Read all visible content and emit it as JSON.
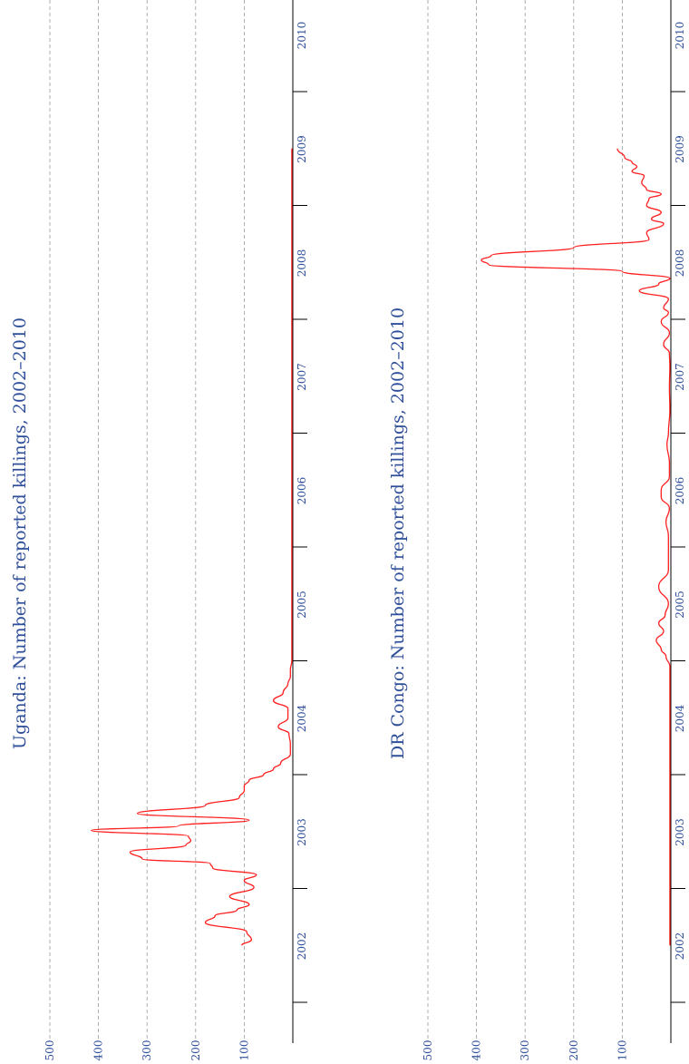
{
  "page": {
    "background": "#ffffff",
    "title_color": "#2f4f9a",
    "tick_color": "#2f4f9a",
    "line_color": "#ff2020",
    "axis_color": "#000000",
    "grid_color": "#999999"
  },
  "chart_data": [
    {
      "type": "line",
      "title": "Uganda: Number of reported killings, 2002–2010",
      "xlabel": "",
      "ylabel": "",
      "y_ticks": [
        "100",
        "200",
        "300",
        "400",
        "500"
      ],
      "x_ticks": [
        "2002",
        "2003",
        "2004",
        "2005",
        "2006",
        "2007",
        "2008",
        "2009",
        "2010"
      ],
      "xlim": [
        2002.0,
        2010.8
      ],
      "ylim": [
        0,
        510
      ],
      "grid": true,
      "series": [
        {
          "x": [
            2002.5,
            2002.55,
            2002.62,
            2002.7,
            2002.76,
            2002.81,
            2002.86,
            2002.93,
            2003.01,
            2003.07,
            2003.12,
            2003.18,
            2003.22,
            2003.26,
            2003.32,
            2003.38,
            2003.42,
            2003.46,
            2003.51,
            2003.55,
            2003.6,
            2003.66,
            2003.73,
            2003.8,
            2003.86,
            2003.9,
            2003.95,
            2004.0,
            2004.05,
            2004.1,
            2004.18,
            2004.27,
            2004.36,
            2004.42,
            2004.5,
            2004.58,
            2004.65,
            2004.72,
            2004.8,
            2004.86,
            2004.92,
            2005.0,
            2005.5,
            2006.0,
            2007.0,
            2008.0,
            2009.0,
            2009.5
          ],
          "y": [
            105,
            85,
            95,
            180,
            160,
            115,
            90,
            130,
            80,
            100,
            75,
            165,
            170,
            310,
            335,
            220,
            210,
            215,
            415,
            235,
            90,
            320,
            180,
            110,
            100,
            100,
            90,
            60,
            40,
            25,
            5,
            5,
            8,
            30,
            10,
            10,
            40,
            20,
            10,
            5,
            5,
            2,
            2,
            2,
            2,
            2,
            2,
            2
          ]
        }
      ]
    },
    {
      "type": "line",
      "title": "DR Congo: Number of reported killings, 2002–2010",
      "xlabel": "",
      "ylabel": "",
      "y_ticks": [
        "100",
        "200",
        "300",
        "400",
        "500"
      ],
      "x_ticks": [
        "2002",
        "2003",
        "2004",
        "2005",
        "2006",
        "2007",
        "2008",
        "2009",
        "2010"
      ],
      "xlim": [
        2002.0,
        2010.8
      ],
      "ylim": [
        0,
        510
      ],
      "grid": true,
      "series": [
        {
          "x": [
            2002.5,
            2003.0,
            2004.0,
            2004.95,
            2005.04,
            2005.1,
            2005.18,
            2005.26,
            2005.33,
            2005.4,
            2005.5,
            2005.65,
            2005.8,
            2006.0,
            2006.1,
            2006.22,
            2006.34,
            2006.44,
            2006.5,
            2006.62,
            2006.74,
            2006.9,
            2007.0,
            2007.2,
            2007.4,
            2007.6,
            2007.7,
            2007.78,
            2007.88,
            2007.98,
            2008.06,
            2008.1,
            2008.18,
            2008.25,
            2008.31,
            2008.36,
            2008.42,
            2008.48,
            2008.52,
            2008.56,
            2008.63,
            2008.7,
            2008.76,
            2008.84,
            2008.88,
            2008.94,
            2009.0,
            2009.06,
            2009.1,
            2009.14,
            2009.2,
            2009.26,
            2009.3,
            2009.34,
            2009.38,
            2009.42,
            2009.5
          ],
          "y": [
            2,
            2,
            2,
            2,
            10,
            20,
            30,
            15,
            25,
            12,
            5,
            25,
            5,
            5,
            5,
            10,
            3,
            20,
            20,
            3,
            3,
            8,
            5,
            2,
            3,
            2,
            3,
            15,
            3,
            20,
            5,
            15,
            5,
            65,
            25,
            2,
            100,
            375,
            390,
            370,
            200,
            45,
            50,
            15,
            40,
            20,
            50,
            45,
            20,
            50,
            60,
            55,
            80,
            70,
            80,
            95,
            110
          ]
        }
      ]
    }
  ]
}
